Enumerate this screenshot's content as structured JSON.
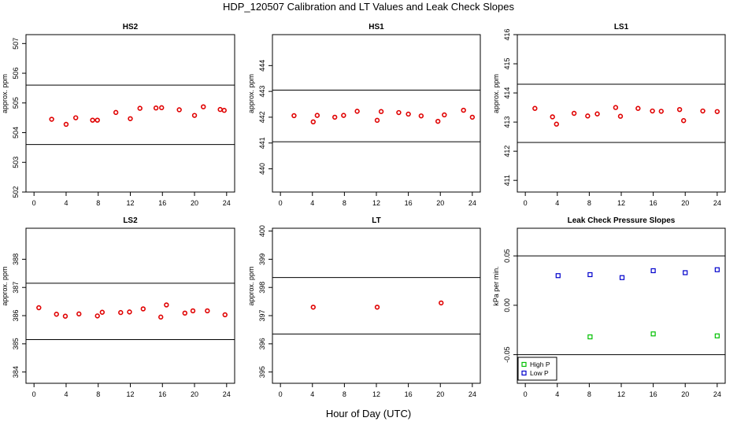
{
  "title": "HDP_120507  Calibration and LT Values and Leak Check Slopes",
  "x_title": "Hour of Day (UTC)",
  "colors": {
    "calibration": "#e00000",
    "high_p": "#00c000",
    "low_p": "#0000cc"
  },
  "chart_data": [
    {
      "type": "scatter",
      "title": "HS2",
      "ylabel": "approx. ppm",
      "xlim": [
        -1,
        25
      ],
      "ylim": [
        502,
        507.3
      ],
      "xticks": [
        0,
        4,
        8,
        12,
        16,
        20,
        24
      ],
      "yticks": [
        502,
        503,
        504,
        505,
        506,
        507
      ],
      "hlines": [
        503.6,
        505.6
      ],
      "series": [
        {
          "x": [
            2.2,
            4.0,
            5.2,
            7.3,
            7.9,
            10.2,
            12.0,
            13.2,
            15.2,
            15.9,
            18.1,
            20.0,
            21.1,
            23.2,
            23.7
          ],
          "y": [
            504.45,
            504.28,
            504.5,
            504.42,
            504.42,
            504.68,
            504.47,
            504.82,
            504.83,
            504.84,
            504.77,
            504.58,
            504.87,
            504.78,
            504.75
          ]
        }
      ]
    },
    {
      "type": "scatter",
      "title": "HS1",
      "ylabel": "approx. ppm",
      "xlim": [
        -1,
        25
      ],
      "ylim": [
        439.1,
        445.2
      ],
      "xticks": [
        0,
        4,
        8,
        12,
        16,
        20,
        24
      ],
      "yticks": [
        440,
        441,
        442,
        443,
        444
      ],
      "hlines": [
        441.05,
        443.05
      ],
      "series": [
        {
          "x": [
            1.7,
            4.1,
            4.6,
            6.8,
            7.9,
            9.6,
            12.1,
            12.6,
            14.8,
            16.0,
            17.6,
            19.7,
            20.5,
            22.9,
            24.0
          ],
          "y": [
            442.06,
            441.82,
            442.07,
            442.0,
            442.07,
            442.23,
            441.88,
            442.22,
            442.18,
            442.12,
            442.05,
            441.84,
            442.09,
            442.27,
            442.0
          ]
        }
      ]
    },
    {
      "type": "scatter",
      "title": "LS1",
      "ylabel": "approx. ppm",
      "xlim": [
        -1,
        25
      ],
      "ylim": [
        410.6,
        416
      ],
      "xticks": [
        0,
        4,
        8,
        12,
        16,
        20,
        24
      ],
      "yticks": [
        411,
        412,
        413,
        414,
        415,
        416
      ],
      "hlines": [
        412.3,
        414.3
      ],
      "series": [
        {
          "x": [
            1.2,
            3.4,
            3.9,
            6.1,
            7.8,
            9.0,
            11.3,
            11.9,
            14.1,
            15.9,
            17.0,
            19.3,
            19.8,
            22.2,
            24.0
          ],
          "y": [
            413.47,
            413.18,
            412.93,
            413.3,
            413.21,
            413.28,
            413.5,
            413.2,
            413.47,
            413.38,
            413.37,
            413.43,
            413.05,
            413.38,
            413.36
          ]
        }
      ]
    },
    {
      "type": "scatter",
      "title": "LS2",
      "ylabel": "approx. ppm",
      "xlim": [
        -1,
        25
      ],
      "ylim": [
        383.6,
        389.1
      ],
      "xticks": [
        0,
        4,
        8,
        12,
        16,
        20,
        24
      ],
      "yticks": [
        384,
        385,
        386,
        387,
        388
      ],
      "hlines": [
        385.15,
        387.15
      ],
      "series": [
        {
          "x": [
            0.6,
            2.8,
            3.9,
            5.6,
            7.9,
            8.5,
            10.8,
            11.9,
            13.6,
            15.8,
            16.5,
            18.8,
            19.8,
            21.6,
            23.8
          ],
          "y": [
            386.28,
            386.05,
            385.98,
            386.06,
            385.99,
            386.12,
            386.11,
            386.13,
            386.24,
            385.95,
            386.38,
            386.09,
            386.17,
            386.17,
            386.03
          ]
        }
      ]
    },
    {
      "type": "scatter",
      "title": "LT",
      "ylabel": "approx. ppm",
      "xlim": [
        -1,
        25
      ],
      "ylim": [
        394.6,
        400.1
      ],
      "xticks": [
        0,
        4,
        8,
        12,
        16,
        20,
        24
      ],
      "yticks": [
        395,
        396,
        397,
        398,
        399,
        400
      ],
      "hlines": [
        396.35,
        398.35
      ],
      "series": [
        {
          "x": [
            4.1,
            12.1,
            20.1
          ],
          "y": [
            397.3,
            397.3,
            397.45
          ]
        }
      ]
    },
    {
      "type": "scatter",
      "title": "Leak Check Pressure Slopes",
      "ylabel": "kPa per min.",
      "xlim": [
        -1,
        25
      ],
      "ylim": [
        -0.079,
        0.078
      ],
      "xticks": [
        0,
        4,
        8,
        12,
        16,
        20,
        24
      ],
      "yticks": [
        -0.05,
        0.0,
        0.05
      ],
      "ytick_labels": [
        "-0.05",
        "0.00",
        "0.05"
      ],
      "hlines": [
        -0.05,
        0.05
      ],
      "legend": {
        "position": "bottom-left",
        "entries": [
          "High P",
          "Low P"
        ]
      },
      "series": [
        {
          "name": "High P",
          "x": [
            8.1,
            16.0,
            24.0
          ],
          "y": [
            -0.032,
            -0.029,
            -0.031
          ]
        },
        {
          "name": "Low P",
          "x": [
            4.1,
            8.1,
            12.1,
            16.0,
            20.0,
            24.0
          ],
          "y": [
            0.03,
            0.031,
            0.028,
            0.035,
            0.033,
            0.036
          ]
        }
      ]
    }
  ]
}
